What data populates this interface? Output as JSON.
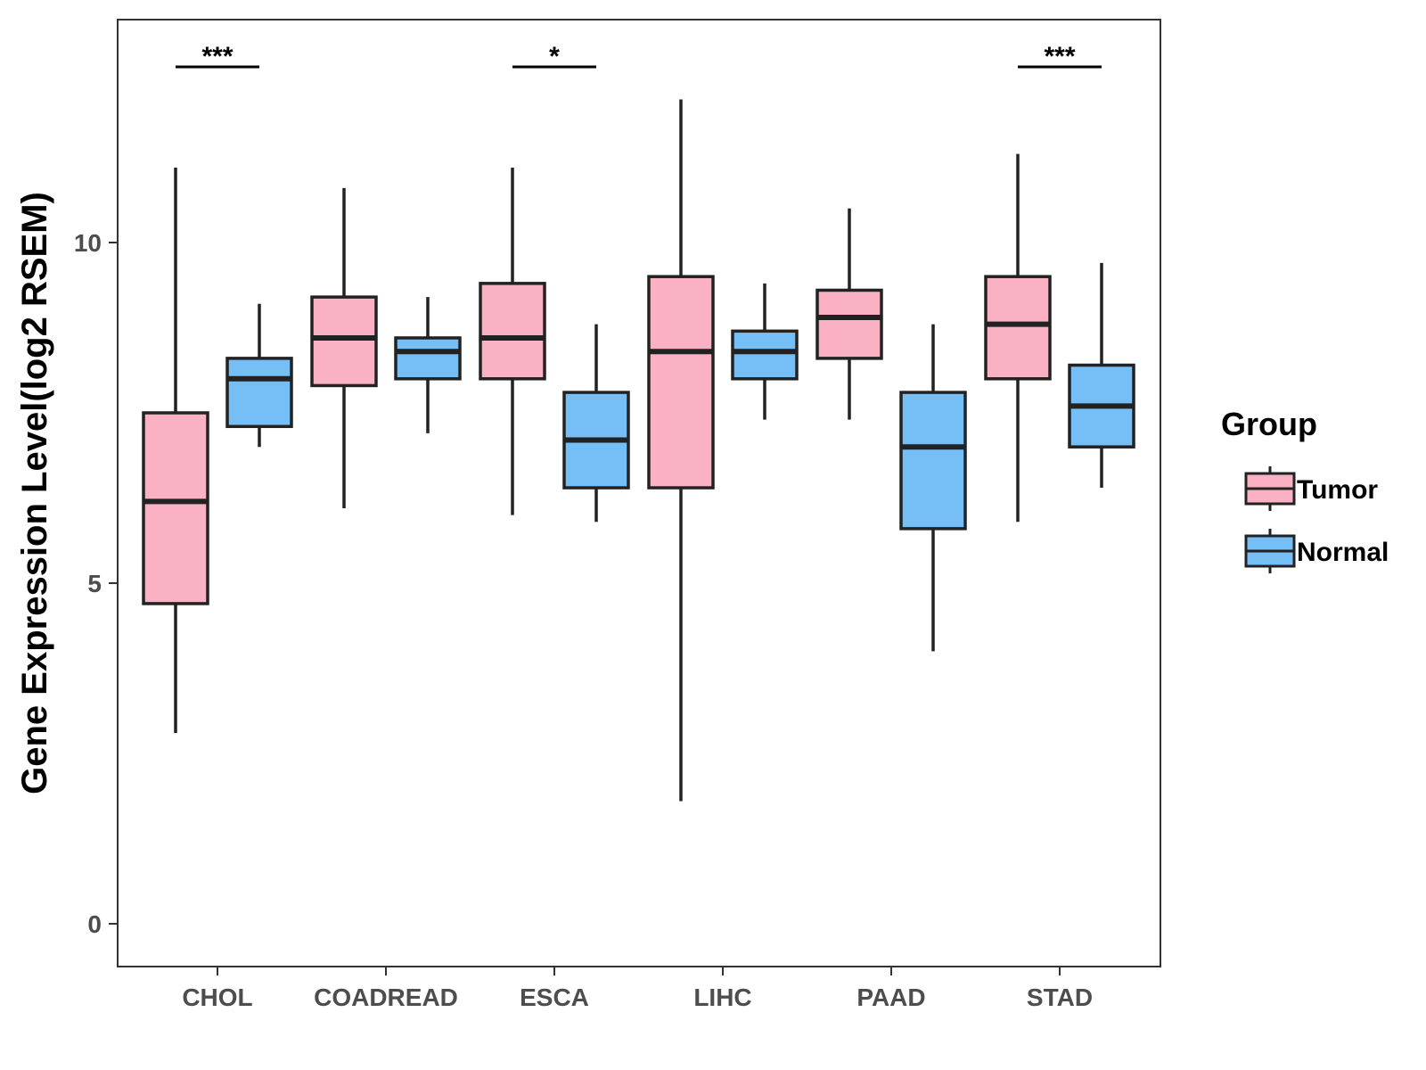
{
  "chart_data": {
    "type": "boxplot",
    "title": "",
    "xlabel": "",
    "ylabel": "Gene Expression Level(log2 RSEM)",
    "ylim": [
      -0.6,
      13.3
    ],
    "yticks": [
      0,
      5,
      10
    ],
    "grid": false,
    "categories": [
      "CHOL",
      "COADREAD",
      "ESCA",
      "LIHC",
      "PAAD",
      "STAD"
    ],
    "series": [
      {
        "name": "Tumor",
        "color": "#FBB1C4",
        "boxes": [
          {
            "min": 2.8,
            "q1": 4.7,
            "median": 6.2,
            "q3": 7.5,
            "max": 11.1
          },
          {
            "min": 6.1,
            "q1": 7.9,
            "median": 8.6,
            "q3": 9.2,
            "max": 10.8
          },
          {
            "min": 6.0,
            "q1": 8.0,
            "median": 8.6,
            "q3": 9.4,
            "max": 11.1
          },
          {
            "min": 1.8,
            "q1": 6.4,
            "median": 8.4,
            "q3": 9.5,
            "max": 12.1
          },
          {
            "min": 7.4,
            "q1": 8.3,
            "median": 8.9,
            "q3": 9.3,
            "max": 10.5
          },
          {
            "min": 5.9,
            "q1": 8.0,
            "median": 8.8,
            "q3": 9.5,
            "max": 11.3
          }
        ]
      },
      {
        "name": "Normal",
        "color": "#75BFF6",
        "boxes": [
          {
            "min": 7.0,
            "q1": 7.3,
            "median": 8.0,
            "q3": 8.3,
            "max": 9.1
          },
          {
            "min": 7.2,
            "q1": 8.0,
            "median": 8.4,
            "q3": 8.6,
            "max": 9.2
          },
          {
            "min": 5.9,
            "q1": 6.4,
            "median": 7.1,
            "q3": 7.8,
            "max": 8.8
          },
          {
            "min": 7.4,
            "q1": 8.0,
            "median": 8.4,
            "q3": 8.7,
            "max": 9.4
          },
          {
            "min": 4.0,
            "q1": 5.8,
            "median": 7.0,
            "q3": 7.8,
            "max": 8.8
          },
          {
            "min": 6.4,
            "q1": 7.0,
            "median": 7.6,
            "q3": 8.2,
            "max": 9.7
          }
        ]
      }
    ],
    "significance": [
      {
        "category": "CHOL",
        "label": "***"
      },
      {
        "category": "ESCA",
        "label": "*"
      },
      {
        "category": "STAD",
        "label": "***"
      }
    ],
    "legend": {
      "title": "Group",
      "position": "right"
    }
  }
}
